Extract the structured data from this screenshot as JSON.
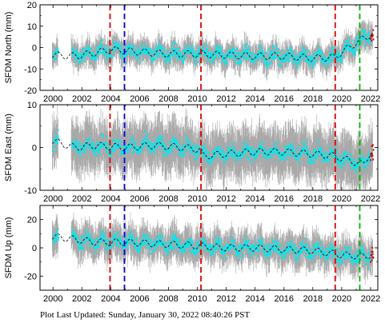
{
  "footer": "Plot Last Updated:   Sunday, January 30, 2022 08:40:26 PST",
  "chart_data": [
    {
      "type": "scatter",
      "ylabel": "SFDM North (mm)",
      "ylim": [
        -20,
        20
      ],
      "yticks": [
        -20,
        -10,
        0,
        10,
        20
      ],
      "xlim": [
        1999.1,
        2022.5
      ],
      "xticks": [
        2000,
        2002,
        2004,
        2006,
        2008,
        2010,
        2012,
        2014,
        2016,
        2018,
        2020,
        2022
      ],
      "series": [
        {
          "role": "errorbar",
          "color": "#a9a9a9",
          "halfwidth": 5
        },
        {
          "role": "point",
          "color": "#00e8f0"
        },
        {
          "role": "trend",
          "color": "#000000",
          "points": [
            [
              2000.0,
              -3.5
            ],
            [
              2001.5,
              -4.0
            ],
            [
              2002.5,
              -3.0
            ],
            [
              2004.0,
              -1.0
            ],
            [
              2006.0,
              -2.0
            ],
            [
              2008.0,
              -3.0
            ],
            [
              2010.0,
              -3.0
            ],
            [
              2012.0,
              -3.5
            ],
            [
              2014.0,
              -4.0
            ],
            [
              2016.0,
              -4.0
            ],
            [
              2018.0,
              -5.0
            ],
            [
              2019.5,
              -4.5
            ],
            [
              2020.5,
              0.0
            ],
            [
              2021.3,
              3.5
            ],
            [
              2022.0,
              6.0
            ]
          ]
        }
      ],
      "vlines": [
        {
          "x": 2003.95,
          "color": "#e00000"
        },
        {
          "x": 2004.95,
          "color": "#0000e0"
        },
        {
          "x": 2010.25,
          "color": "#e00000"
        },
        {
          "x": 2019.55,
          "color": "#e00000"
        },
        {
          "x": 2021.25,
          "color": "#00b000"
        }
      ]
    },
    {
      "type": "scatter",
      "ylabel": "SFDM East (mm)",
      "ylim": [
        -10,
        10
      ],
      "yticks": [
        -10,
        0,
        10
      ],
      "xlim": [
        1999.1,
        2022.5
      ],
      "xticks": [
        2000,
        2002,
        2004,
        2006,
        2008,
        2010,
        2012,
        2014,
        2016,
        2018,
        2020,
        2022
      ],
      "series": [
        {
          "role": "errorbar",
          "color": "#a9a9a9",
          "halfwidth": 5
        },
        {
          "role": "point",
          "color": "#00e8f0"
        },
        {
          "role": "trend",
          "color": "#000000",
          "points": [
            [
              2000.0,
              1.5
            ],
            [
              2001.5,
              0.0
            ],
            [
              2003.0,
              0.5
            ],
            [
              2005.0,
              0.0
            ],
            [
              2007.0,
              0.5
            ],
            [
              2009.0,
              0.0
            ],
            [
              2010.2,
              -0.5
            ],
            [
              2010.4,
              -2.0
            ],
            [
              2012.0,
              -1.5
            ],
            [
              2014.0,
              -1.0
            ],
            [
              2016.0,
              -1.0
            ],
            [
              2018.0,
              -1.5
            ],
            [
              2019.5,
              -2.0
            ],
            [
              2020.5,
              -3.0
            ],
            [
              2021.5,
              -4.0
            ],
            [
              2022.0,
              -1.0
            ]
          ]
        }
      ],
      "vlines": [
        {
          "x": 2003.95,
          "color": "#e00000"
        },
        {
          "x": 2004.95,
          "color": "#0000e0"
        },
        {
          "x": 2010.25,
          "color": "#e00000"
        },
        {
          "x": 2019.55,
          "color": "#e00000"
        },
        {
          "x": 2021.25,
          "color": "#00b000"
        }
      ]
    },
    {
      "type": "scatter",
      "ylabel": "SFDM Up (mm)",
      "ylim": [
        -30,
        30
      ],
      "yticks": [
        -20,
        0,
        20
      ],
      "xlim": [
        1999.1,
        2022.5
      ],
      "xticks": [
        2000,
        2002,
        2004,
        2006,
        2008,
        2010,
        2012,
        2014,
        2016,
        2018,
        2020,
        2022
      ],
      "series": [
        {
          "role": "errorbar",
          "color": "#a9a9a9",
          "halfwidth": 10
        },
        {
          "role": "point",
          "color": "#00e8f0"
        },
        {
          "role": "trend",
          "color": "#000000",
          "points": [
            [
              2000.0,
              8.0
            ],
            [
              2001.5,
              6.0
            ],
            [
              2003.0,
              4.0
            ],
            [
              2005.0,
              4.0
            ],
            [
              2007.0,
              3.0
            ],
            [
              2009.0,
              2.0
            ],
            [
              2010.5,
              1.0
            ],
            [
              2012.0,
              0.0
            ],
            [
              2014.0,
              0.0
            ],
            [
              2016.0,
              -1.0
            ],
            [
              2018.0,
              -2.0
            ],
            [
              2020.0,
              -5.0
            ],
            [
              2021.5,
              -6.0
            ],
            [
              2022.0,
              -5.0
            ]
          ]
        }
      ],
      "vlines": [
        {
          "x": 2003.95,
          "color": "#e00000"
        },
        {
          "x": 2004.95,
          "color": "#0000e0"
        },
        {
          "x": 2010.25,
          "color": "#e00000"
        },
        {
          "x": 2019.55,
          "color": "#e00000"
        },
        {
          "x": 2021.25,
          "color": "#00b000"
        }
      ]
    }
  ]
}
